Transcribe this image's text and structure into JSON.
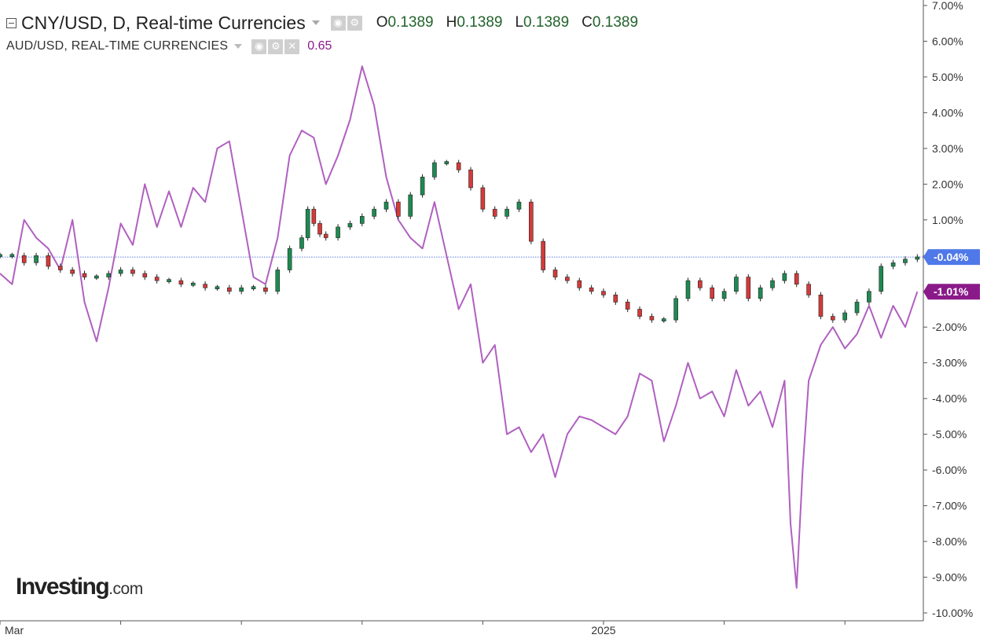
{
  "legend": {
    "main": {
      "title": "CNY/USD, D, Real-time Currencies",
      "open_label": "O",
      "open": "0.1389",
      "high_label": "H",
      "high": "0.1389",
      "low_label": "L",
      "low": "0.1389",
      "close_label": "C",
      "close": "0.1389"
    },
    "compare": {
      "title": "AUD/USD, REAL-TIME CURRENCIES",
      "value": "0.65"
    },
    "icons": [
      "eye-icon",
      "gear-icon",
      "close-icon"
    ]
  },
  "watermark": {
    "brand": "Investing",
    "suffix": ".com"
  },
  "colors": {
    "compare_line": "#b060c0",
    "candle_up": "#1e8a52",
    "candle_down": "#d43a3a",
    "last_price_line": "#5b7fe6",
    "badge_main": "#4f78e8",
    "badge_compare": "#8a1a8a",
    "axis": "#555555"
  },
  "chart_data": {
    "type": "line",
    "title": "",
    "xlabel": "",
    "ylabel": "",
    "y_unit": "percent change",
    "ylim": [
      -10,
      7
    ],
    "yticks": [
      "7.00%",
      "6.00%",
      "5.00%",
      "4.00%",
      "3.00%",
      "2.00%",
      "1.00%",
      "0.00%",
      "-1.00%",
      "-2.00%",
      "-3.00%",
      "-4.00%",
      "-5.00%",
      "-6.00%",
      "-7.00%",
      "-8.00%",
      "-9.00%",
      "-10.00%"
    ],
    "xlabels": [
      {
        "label": "Mar",
        "x": 0
      },
      {
        "label": "2025",
        "x": 10
      }
    ],
    "xlim": [
      0,
      15.3
    ],
    "x_tick_positions": [
      2,
      4,
      6,
      8,
      10,
      12,
      14
    ],
    "grid": false,
    "last_values": [
      {
        "series": "CNY/USD",
        "label": "-0.04%",
        "value": -0.04
      },
      {
        "series": "AUD/USD",
        "label": "-1.01%",
        "value": -1.01
      }
    ],
    "series": [
      {
        "name": "CNY/USD",
        "style": "candlestick",
        "x": [
          0.0,
          0.2,
          0.4,
          0.6,
          0.8,
          1.0,
          1.2,
          1.4,
          1.6,
          1.8,
          2.0,
          2.2,
          2.4,
          2.6,
          2.8,
          3.0,
          3.2,
          3.4,
          3.6,
          3.8,
          4.0,
          4.2,
          4.4,
          4.6,
          4.8,
          5.0,
          5.1,
          5.2,
          5.3,
          5.4,
          5.6,
          5.8,
          6.0,
          6.2,
          6.4,
          6.6,
          6.8,
          7.0,
          7.2,
          7.4,
          7.6,
          7.8,
          8.0,
          8.2,
          8.4,
          8.6,
          8.8,
          9.0,
          9.2,
          9.4,
          9.6,
          9.8,
          10.0,
          10.2,
          10.4,
          10.6,
          10.8,
          11.0,
          11.2,
          11.4,
          11.6,
          11.8,
          12.0,
          12.2,
          12.4,
          12.6,
          12.8,
          13.0,
          13.2,
          13.4,
          13.6,
          13.8,
          14.0,
          14.2,
          14.4,
          14.6,
          14.8,
          15.0,
          15.2
        ],
        "values": [
          0.0,
          0.0,
          -0.2,
          0.0,
          -0.3,
          -0.4,
          -0.5,
          -0.6,
          -0.6,
          -0.5,
          -0.4,
          -0.5,
          -0.6,
          -0.7,
          -0.7,
          -0.8,
          -0.8,
          -0.9,
          -0.9,
          -1.0,
          -0.9,
          -0.9,
          -1.0,
          -0.4,
          0.2,
          0.5,
          1.3,
          0.9,
          0.6,
          0.5,
          0.8,
          0.9,
          1.1,
          1.3,
          1.5,
          1.1,
          1.7,
          2.2,
          2.6,
          2.6,
          2.4,
          1.9,
          1.3,
          1.1,
          1.3,
          1.5,
          0.4,
          -0.4,
          -0.6,
          -0.7,
          -0.9,
          -1.0,
          -1.1,
          -1.3,
          -1.5,
          -1.7,
          -1.8,
          -1.8,
          -1.2,
          -0.7,
          -0.9,
          -1.2,
          -1.0,
          -0.6,
          -1.2,
          -0.9,
          -0.7,
          -0.5,
          -0.8,
          -1.1,
          -1.7,
          -1.8,
          -1.6,
          -1.3,
          -1.0,
          -0.3,
          -0.2,
          -0.1,
          -0.04
        ]
      },
      {
        "name": "AUD/USD",
        "style": "line",
        "x": [
          0.0,
          0.2,
          0.4,
          0.6,
          0.8,
          1.0,
          1.2,
          1.4,
          1.6,
          1.8,
          2.0,
          2.2,
          2.4,
          2.6,
          2.8,
          3.0,
          3.2,
          3.4,
          3.6,
          3.8,
          4.0,
          4.2,
          4.4,
          4.6,
          4.8,
          5.0,
          5.2,
          5.4,
          5.6,
          5.8,
          6.0,
          6.2,
          6.4,
          6.6,
          6.8,
          7.0,
          7.2,
          7.4,
          7.6,
          7.8,
          8.0,
          8.2,
          8.4,
          8.6,
          8.8,
          9.0,
          9.2,
          9.4,
          9.6,
          9.8,
          10.0,
          10.2,
          10.4,
          10.6,
          10.8,
          11.0,
          11.2,
          11.4,
          11.6,
          11.8,
          12.0,
          12.2,
          12.4,
          12.6,
          12.8,
          13.0,
          13.1,
          13.2,
          13.3,
          13.4,
          13.6,
          13.8,
          14.0,
          14.2,
          14.4,
          14.6,
          14.8,
          15.0,
          15.2
        ],
        "values": [
          -0.5,
          -0.8,
          1.0,
          0.5,
          0.2,
          -0.4,
          1.0,
          -1.3,
          -2.4,
          -0.9,
          0.9,
          0.3,
          2.0,
          0.8,
          1.8,
          0.8,
          1.9,
          1.5,
          3.0,
          3.2,
          1.3,
          -0.6,
          -0.8,
          0.5,
          2.8,
          3.5,
          3.3,
          2.0,
          2.8,
          3.8,
          5.3,
          4.2,
          2.2,
          1.0,
          0.5,
          0.2,
          1.5,
          0.0,
          -1.5,
          -0.8,
          -3.0,
          -2.5,
          -5.0,
          -4.8,
          -5.5,
          -5.0,
          -6.2,
          -5.0,
          -4.5,
          -4.6,
          -4.8,
          -5.0,
          -4.5,
          -3.3,
          -3.5,
          -5.2,
          -4.2,
          -3.0,
          -4.0,
          -3.8,
          -4.5,
          -3.2,
          -4.2,
          -3.8,
          -4.8,
          -3.5,
          -7.5,
          -9.3,
          -6.0,
          -3.5,
          -2.5,
          -2.0,
          -2.6,
          -2.2,
          -1.4,
          -2.3,
          -1.4,
          -2.0,
          -1.01
        ]
      }
    ]
  }
}
